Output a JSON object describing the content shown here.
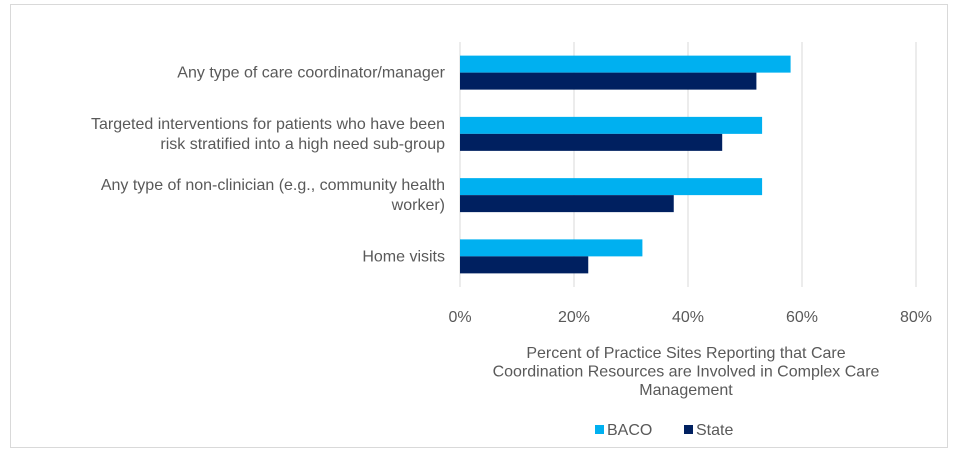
{
  "chart_data": {
    "type": "bar",
    "orientation": "horizontal",
    "categories": [
      [
        "Any type of care coordinator/manager"
      ],
      [
        "Targeted interventions for patients who have been",
        "risk stratified into a high need sub-group"
      ],
      [
        "Any type of non-clinician (e.g., community health",
        "worker)"
      ],
      [
        "Home visits"
      ]
    ],
    "series": [
      {
        "name": "BACO",
        "color": "#00b0f0",
        "values": [
          58,
          53,
          53,
          32
        ]
      },
      {
        "name": "State",
        "color": "#002060",
        "values": [
          52,
          46,
          37.5,
          22.5
        ]
      }
    ],
    "xlim": [
      0,
      80
    ],
    "x_ticks": [
      "0%",
      "20%",
      "40%",
      "60%",
      "80%"
    ],
    "x_tick_values": [
      0,
      20,
      40,
      60,
      80
    ],
    "xlabel": [
      "Percent of Practice Sites Reporting that Care",
      "Coordination Resources are Involved in Complex Care",
      "Management"
    ],
    "ylabel": "",
    "title": "",
    "grid": true,
    "legend_position": "bottom"
  }
}
